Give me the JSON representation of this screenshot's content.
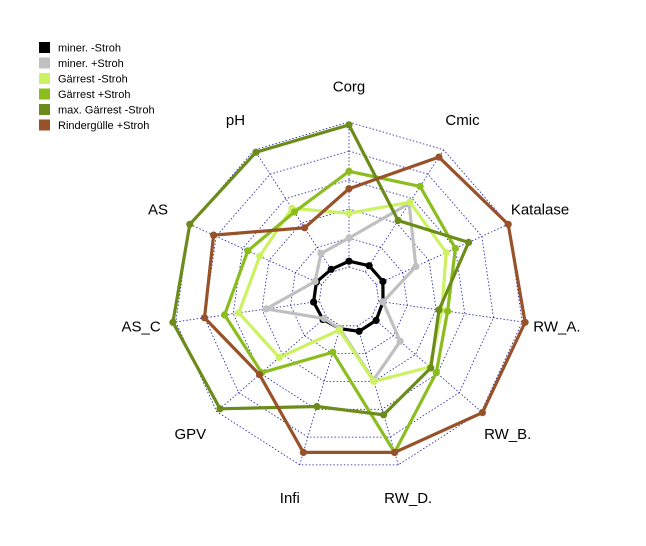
{
  "chart_data": {
    "type": "radar",
    "title": "",
    "axes": [
      "Corg",
      "Cmic",
      "Katalase",
      "RW_A.",
      "RW_B.",
      "RW_D.",
      "Infi",
      "GPV",
      "AS_C",
      "AS",
      "pH"
    ],
    "scale": {
      "min": 0,
      "max": 1,
      "rings": 5
    },
    "grid": true,
    "legend": "top-left",
    "series": [
      {
        "name": "miner. -Stroh",
        "color": "#000000",
        "values": [
          0.04,
          0.05,
          0.05,
          0.03,
          0.04,
          0.04,
          0.02,
          0.03,
          0.04,
          0.04,
          0.02
        ]
      },
      {
        "name": "miner. +Stroh",
        "color": "#c0c0c0",
        "values": [
          0.2,
          0.56,
          0.3,
          0.03,
          0.26,
          0.39,
          0.02,
          0.02,
          0.37,
          0.05,
          0.15
        ]
      },
      {
        "name": "Gärrest -Stroh",
        "color": "#ccf261",
        "values": [
          0.37,
          0.57,
          0.53,
          0.44,
          0.53,
          0.4,
          0.03,
          0.43,
          0.56,
          0.47,
          0.52
        ]
      },
      {
        "name": "Gärrest +Stroh",
        "color": "#8bbd1e",
        "values": [
          0.66,
          0.7,
          0.6,
          0.48,
          0.59,
          0.91,
          0.19,
          0.59,
          0.66,
          0.56,
          0.49
        ]
      },
      {
        "name": "max. Gärrest -Stroh",
        "color": "#6b8c1a",
        "values": [
          0.98,
          0.42,
          0.7,
          0.42,
          0.54,
          0.64,
          0.58,
          0.97,
          1.02,
          1.0,
          0.98
        ]
      },
      {
        "name": "Rindergülle +Stroh",
        "color": "#98522a",
        "values": [
          0.54,
          0.94,
          1.0,
          1.02,
          1.01,
          0.91,
          0.91,
          0.61,
          0.8,
          0.82,
          0.36
        ]
      }
    ]
  }
}
